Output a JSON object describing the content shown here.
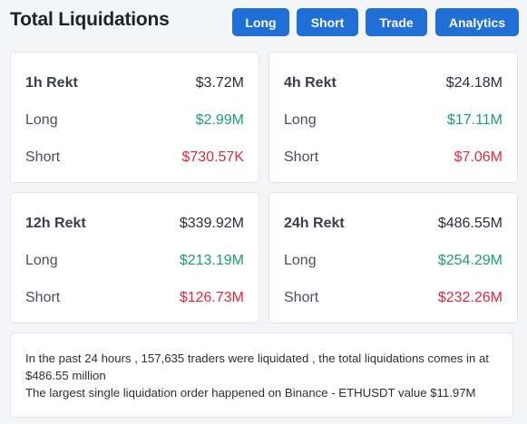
{
  "header": {
    "title": "Total Liquidations",
    "buttons": {
      "long": "Long",
      "short": "Short",
      "trade": "Trade",
      "analytics": "Analytics"
    },
    "button_color": "#1f6fd6"
  },
  "cards": {
    "c1h": {
      "period": "1h Rekt",
      "total": "$3.72M",
      "long_label": "Long",
      "long": "$2.99M",
      "short_label": "Short",
      "short": "$730.57K"
    },
    "c4h": {
      "period": "4h Rekt",
      "total": "$24.18M",
      "long_label": "Long",
      "long": "$17.11M",
      "short_label": "Short",
      "short": "$7.06M"
    },
    "c12h": {
      "period": "12h Rekt",
      "total": "$339.92M",
      "long_label": "Long",
      "long": "$213.19M",
      "short_label": "Short",
      "short": "$126.73M"
    },
    "c24h": {
      "period": "24h Rekt",
      "total": "$486.55M",
      "long_label": "Long",
      "long": "$254.29M",
      "short_label": "Short",
      "short": "$232.26M"
    }
  },
  "colors": {
    "long": "#1b9e77",
    "short": "#e0293d"
  },
  "summary": {
    "line1": "In the past 24 hours , 157,635 traders were liquidated , the total liquidations comes in at $486.55 million",
    "line2": "The largest single liquidation order happened on Binance - ETHUSDT value $11.97M"
  }
}
